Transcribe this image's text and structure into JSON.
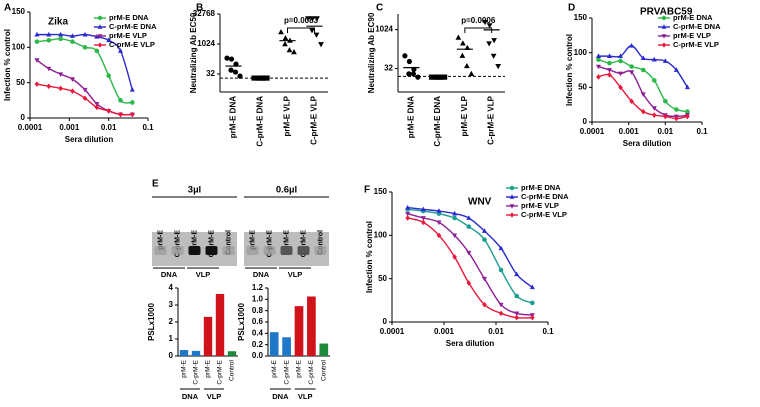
{
  "chart_data": [
    {
      "type": "line",
      "panel": "A",
      "title": "Zika",
      "xlabel": "Sera dilution",
      "ylabel": "Infection % control",
      "xlog": true,
      "xlim": [
        0.0001,
        0.1
      ],
      "xticks": [
        0.0001,
        0.001,
        0.01,
        0.1
      ],
      "ylim": [
        0,
        150
      ],
      "yticks": [
        0,
        50,
        100,
        150
      ],
      "x": [
        0.00015,
        0.0003,
        0.0006,
        0.0012,
        0.0025,
        0.005,
        0.01,
        0.02,
        0.04
      ],
      "series": [
        {
          "name": "prM-E DNA",
          "color": "#2db84a",
          "marker": "circle",
          "values": [
            108,
            110,
            112,
            108,
            100,
            95,
            60,
            25,
            22
          ]
        },
        {
          "name": "C-prM-E DNA",
          "color": "#2a2ad0",
          "marker": "triangle",
          "values": [
            118,
            118,
            118,
            116,
            118,
            115,
            110,
            95,
            40
          ]
        },
        {
          "name": "prM-E VLP",
          "color": "#8e1f95",
          "marker": "triangle-down",
          "values": [
            82,
            70,
            62,
            55,
            40,
            20,
            10,
            5,
            5
          ]
        },
        {
          "name": "C-prM-E VLP",
          "color": "#e8193c",
          "marker": "diamond",
          "values": [
            48,
            45,
            42,
            38,
            28,
            15,
            10,
            5,
            5
          ]
        }
      ]
    },
    {
      "type": "dot",
      "panel": "B",
      "ylabel": "Neutralizing Ab EC50",
      "ylog": true,
      "ylim": [
        4,
        32768
      ],
      "yticks": [
        32,
        1024,
        32768
      ],
      "categories": [
        "prM-E DNA",
        "C-prM-E DNA",
        "prM-E VLP",
        "C-prM-E VLP"
      ],
      "markers": [
        "circle",
        "square",
        "triangle",
        "triangle-down"
      ],
      "values": [
        [
          200,
          180,
          100,
          50,
          40,
          25
        ],
        [
          20,
          20,
          20,
          20,
          20,
          20
        ],
        [
          4000,
          2000,
          1500,
          1000,
          500,
          400
        ],
        [
          20000,
          20000,
          20000,
          5000,
          3000,
          1000
        ]
      ],
      "medians": [
        80,
        20,
        1500,
        8000
      ],
      "reference_line": 20,
      "annotation": "p=0.0083"
    },
    {
      "type": "dot",
      "panel": "C",
      "ylabel": "Neutralizing Ab EC90",
      "ylog": true,
      "ylim": [
        4,
        4096
      ],
      "yticks": [
        32,
        1024
      ],
      "categories": [
        "prM-E DNA",
        "C-prM-E DNA",
        "prM-E VLP",
        "C-prM-E VLP"
      ],
      "markers": [
        "circle",
        "square",
        "triangle",
        "triangle-down"
      ],
      "values": [
        [
          100,
          60,
          30,
          20,
          20,
          15
        ],
        [
          15,
          15,
          15,
          15,
          15,
          15
        ],
        [
          500,
          300,
          200,
          100,
          40,
          20
        ],
        [
          2000,
          1500,
          400,
          300,
          100,
          40
        ]
      ],
      "medians": [
        35,
        16,
        180,
        1000
      ],
      "reference_line": 16,
      "annotation": "p=0.0006"
    },
    {
      "type": "line",
      "panel": "D",
      "title": "PRVABC59",
      "xlabel": "Sera dilution",
      "ylabel": "Infection % control",
      "xlog": true,
      "xlim": [
        0.0001,
        0.1
      ],
      "xticks": [
        0.0001,
        0.001,
        0.01,
        0.1
      ],
      "ylim": [
        0,
        150
      ],
      "yticks": [
        0,
        50,
        100,
        150
      ],
      "x": [
        0.00015,
        0.0003,
        0.0006,
        0.0012,
        0.0025,
        0.005,
        0.01,
        0.02,
        0.04
      ],
      "series": [
        {
          "name": "prM-E DNA",
          "color": "#2db84a",
          "marker": "circle",
          "values": [
            90,
            85,
            88,
            80,
            75,
            60,
            30,
            18,
            15
          ]
        },
        {
          "name": "C-prM-E DNA",
          "color": "#2a2ad0",
          "marker": "triangle",
          "values": [
            95,
            95,
            95,
            110,
            92,
            90,
            88,
            75,
            50
          ]
        },
        {
          "name": "prM-E VLP",
          "color": "#8e1f95",
          "marker": "triangle-down",
          "values": [
            80,
            75,
            70,
            72,
            40,
            20,
            10,
            8,
            10
          ]
        },
        {
          "name": "C-prM-E VLP",
          "color": "#e8193c",
          "marker": "diamond",
          "values": [
            65,
            68,
            50,
            30,
            15,
            10,
            8,
            5,
            8
          ]
        }
      ]
    },
    {
      "type": "bar",
      "panel": "E",
      "ylabel": "PSLx1000",
      "ylim": [
        0,
        4
      ],
      "yticks": [
        0,
        1,
        2,
        3,
        4
      ],
      "categories": [
        "prM-E",
        "C-prM-E",
        "prM-E",
        "C-prM-E",
        "Control"
      ],
      "groups": [
        "DNA",
        "VLP"
      ],
      "values": [
        0.35,
        0.3,
        2.3,
        3.65,
        0.28
      ],
      "colors": [
        "#1f77c8",
        "#1f77c8",
        "#d0121b",
        "#d0121b",
        "#1d8a3c"
      ]
    },
    {
      "type": "bar",
      "ylabel": "PSLx1000",
      "ylim": [
        0,
        1.2
      ],
      "yticks": [
        {
          "value": 0,
          "label": "0.0"
        },
        0.2,
        0.4,
        0.6,
        0.8,
        {
          "value": 1,
          "label": "1.0"
        },
        1.2
      ],
      "categories": [
        "prM-E",
        "C-prM-E",
        "prM-E",
        "C-prM-E",
        "Control"
      ],
      "groups": [
        "DNA",
        "VLP"
      ],
      "values": [
        0.42,
        0.33,
        0.88,
        1.05,
        0.22
      ],
      "colors": [
        "#1f77c8",
        "#1f77c8",
        "#d0121b",
        "#d0121b",
        "#1d8a3c"
      ]
    },
    {
      "type": "line",
      "panel": "F",
      "title": "WNV",
      "xlabel": "Sera dilution",
      "ylabel": "Infection % control",
      "xlog": true,
      "xlim": [
        0.0001,
        0.1
      ],
      "xticks": [
        0.0001,
        0.001,
        0.01,
        0.1
      ],
      "ylim": [
        0,
        150
      ],
      "yticks": [
        0,
        50,
        100,
        150
      ],
      "x": [
        0.0002,
        0.0004,
        0.0008,
        0.0016,
        0.003,
        0.006,
        0.0125,
        0.025,
        0.05
      ],
      "series": [
        {
          "name": "prM-E DNA",
          "color": "#1a9e8f",
          "marker": "circle",
          "values": [
            130,
            128,
            125,
            120,
            110,
            95,
            60,
            30,
            22
          ]
        },
        {
          "name": "C-prM-E DNA",
          "color": "#2a2ad0",
          "marker": "triangle",
          "values": [
            132,
            130,
            128,
            125,
            120,
            105,
            85,
            55,
            40
          ]
        },
        {
          "name": "prM-E VLP",
          "color": "#8e1f95",
          "marker": "triangle-down",
          "values": [
            125,
            120,
            115,
            100,
            80,
            50,
            20,
            10,
            8
          ]
        },
        {
          "name": "C-prM-E VLP",
          "color": "#e8193c",
          "marker": "diamond",
          "values": [
            120,
            115,
            100,
            75,
            45,
            20,
            10,
            5,
            5
          ]
        }
      ]
    }
  ],
  "blot": {
    "volumes": [
      "3µl",
      "0.6µl"
    ],
    "lanes": [
      "prM-E",
      "C-prM-E",
      "prM-E",
      "C-prM-E",
      "Control"
    ],
    "groups": [
      "DNA",
      "VLP"
    ]
  }
}
